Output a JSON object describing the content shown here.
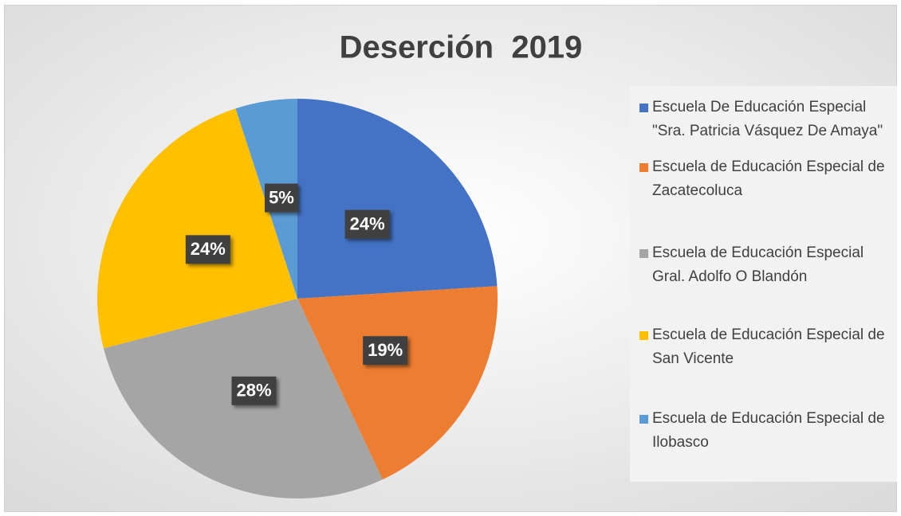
{
  "chart_data": {
    "type": "pie",
    "title": "Deserción  2019",
    "categories": [
      "Escuela De Educación Especial \"Sra. Patricia Vásquez De Amaya\"",
      "Escuela de Educación Especial de Zacatecoluca",
      "Escuela de Educación Especial Gral. Adolfo O Blandón",
      "Escuela de Educación Especial de San Vicente",
      "Escuela de Educación Especial de Ilobasco"
    ],
    "values": [
      24,
      19,
      28,
      24,
      5
    ],
    "value_labels": [
      "24%",
      "19%",
      "28%",
      "24%",
      "5%"
    ],
    "colors": [
      "#4472c4",
      "#ed7d31",
      "#a5a5a5",
      "#ffc000",
      "#5b9bd5"
    ],
    "legend": "right"
  }
}
